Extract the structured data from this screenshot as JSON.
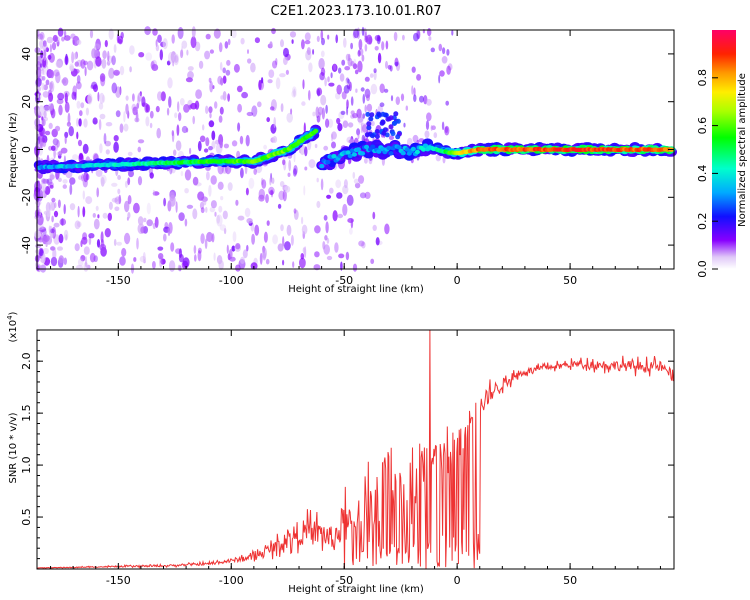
{
  "title": "C2E1.2023.173.10.01.R07",
  "colors": {
    "snr_line": "#ee3333",
    "axis": "#000000"
  },
  "chart_data": [
    {
      "type": "heatmap",
      "name": "spectrogram",
      "xlabel": "Height of straight line (km)",
      "ylabel": "Frequency (Hz)",
      "xlim": [
        -186,
        96
      ],
      "ylim": [
        -50,
        50
      ],
      "xticks": [
        -150,
        -100,
        -50,
        0,
        50
      ],
      "xtick_labels": [
        "-150",
        "-100",
        "-50",
        "0",
        "50"
      ],
      "yticks": [
        -40,
        -20,
        0,
        20,
        40
      ],
      "ytick_labels": [
        "-40",
        "-20",
        "0",
        "20",
        "40"
      ],
      "ridge": {
        "description_points_x": [
          -186,
          -140,
          -110,
          -90,
          -75,
          -62,
          -60,
          -50,
          -40,
          -30,
          -20,
          -13,
          -5,
          0,
          10,
          50,
          96
        ],
        "description_points_y": [
          -7.5,
          -6,
          -5,
          -5,
          0,
          8,
          -6,
          -2,
          0,
          0,
          -1,
          1,
          -1,
          -1.5,
          0,
          0,
          0
        ],
        "amplitude": [
          0.3,
          0.45,
          0.55,
          0.6,
          0.6,
          0.55,
          0.3,
          0.35,
          0.3,
          0.3,
          0.35,
          0.4,
          0.5,
          0.7,
          0.85,
          0.9,
          0.85
        ]
      },
      "colorbar": {
        "label": "Normalized spectral amplitude",
        "range": [
          0,
          1
        ],
        "ticks": [
          0.0,
          0.2,
          0.4,
          0.6,
          0.8
        ],
        "tick_labels": [
          "0.0",
          "0.2",
          "0.4",
          "0.6",
          "0.8"
        ]
      }
    },
    {
      "type": "line",
      "name": "snr",
      "xlabel": "Height of straight line (km)",
      "ylabel": "SNR (10 * v/v)",
      "yscale_label": "(x10",
      "yscale_exp": "4",
      "yscale_close": ")",
      "xlim": [
        -186,
        96
      ],
      "ylim": [
        0,
        2.3
      ],
      "xticks": [
        -150,
        -100,
        -50,
        0,
        50
      ],
      "xtick_labels": [
        "-150",
        "-100",
        "-50",
        "0",
        "50"
      ],
      "yticks": [
        0.5,
        1.0,
        1.5,
        2.0
      ],
      "ytick_labels": [
        "0.5",
        "1.0",
        "1.5",
        "2.0"
      ],
      "series": [
        {
          "name": "SNR",
          "x": [
            -186,
            -160,
            -130,
            -110,
            -100,
            -90,
            -80,
            -70,
            -60,
            -55,
            -50,
            -45,
            -40,
            -35,
            -30,
            -25,
            -20,
            -15,
            -10,
            -5,
            0,
            5,
            10,
            15,
            20,
            25,
            30,
            40,
            50,
            60,
            70,
            80,
            90,
            96
          ],
          "y": [
            0.01,
            0.02,
            0.03,
            0.05,
            0.08,
            0.12,
            0.22,
            0.35,
            0.35,
            0.28,
            0.45,
            0.55,
            0.65,
            0.75,
            0.85,
            0.8,
            0.95,
            1.0,
            1.05,
            1.1,
            1.2,
            1.4,
            1.55,
            1.7,
            1.78,
            1.85,
            1.9,
            1.94,
            1.97,
            1.97,
            1.96,
            1.95,
            1.95,
            1.85
          ],
          "noise": [
            0.002,
            0.005,
            0.008,
            0.012,
            0.02,
            0.03,
            0.06,
            0.12,
            0.12,
            0.12,
            0.2,
            0.25,
            0.3,
            0.3,
            0.3,
            0.3,
            0.28,
            0.25,
            0.2,
            0.18,
            0.15,
            0.12,
            0.1,
            0.08,
            0.05,
            0.04,
            0.03,
            0.025,
            0.03,
            0.04,
            0.05,
            0.05,
            0.05,
            0.06
          ],
          "peak": {
            "x": -12,
            "y": 2.3
          }
        }
      ]
    }
  ]
}
